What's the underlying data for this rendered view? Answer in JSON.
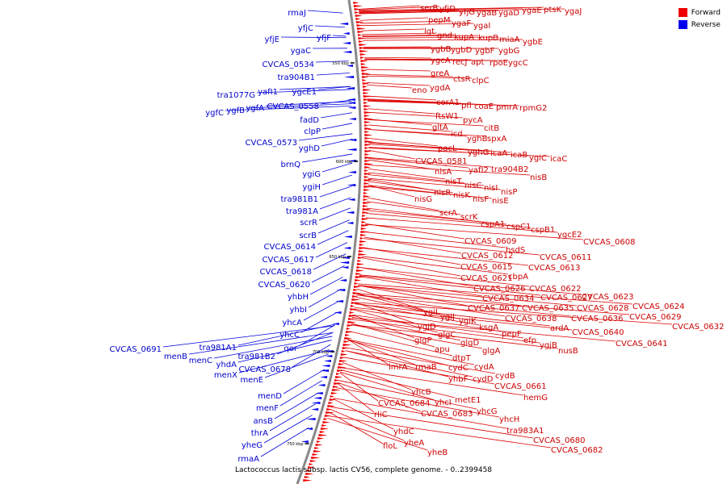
{
  "caption": "Lactococcus lactis subsp. lactis CV56, complete genome. - 0..2399458",
  "legend": [
    {
      "label": "Forward",
      "color": "#ee0000"
    },
    {
      "label": "Reverse",
      "color": "#0000ee"
    }
  ],
  "ticks": [
    "550 kbp",
    "600 kbp",
    "650 kbp",
    "700 kbp",
    "750 kbp"
  ],
  "forward_genes": [
    "serB",
    "yfjD",
    "yfjG",
    "ygaB",
    "ygaD",
    "ygaE",
    "ptsK",
    "ygaJ",
    "pepM",
    "ygaF",
    "ygaI",
    "lgt",
    "gnd",
    "kupA",
    "kupB",
    "miaA",
    "ygbE",
    "ygbB",
    "ygbD",
    "ygbF",
    "ygbG",
    "ygcA",
    "recJ",
    "apt",
    "rpoE",
    "ygcC",
    "greA",
    "ctsR",
    "clpC",
    "eno",
    "ygdA",
    "corA1",
    "pfl",
    "coaE",
    "pmrA",
    "rpmG2",
    "ftsW1",
    "pycA",
    "gltA",
    "citB",
    "icd",
    "yghB",
    "spxA",
    "pacL",
    "yghG",
    "icaA",
    "icaB",
    "ygiC",
    "icaC",
    "CVCAS_0581",
    "nisA",
    "yafI2",
    "tra904B2",
    "nisB",
    "nisT",
    "nisC",
    "nisI",
    "nisP",
    "nisR",
    "nisK",
    "nisF",
    "nisG",
    "nisE",
    "scrA",
    "scrK",
    "cspA1",
    "cspC1",
    "cspB1",
    "ygcE2",
    "CVCAS_0609",
    "hsdS",
    "CVCAS_0608",
    "CVCAS_0612",
    "CVCAS_0611",
    "CVCAS_0615",
    "CVCAS_0613",
    "CVCAS_0621",
    "cbpA",
    "CVCAS_0626",
    "CVCAS_0622",
    "CVCAS_0634",
    "CVCAS_0627",
    "CVCAS_0623",
    "CVCAS_0637",
    "CVCAS_0635",
    "CVCAS_0628",
    "CVCAS_0624",
    "ygiI",
    "ygiJ",
    "ygiK",
    "CVCAS_0638",
    "CVCAS_0636",
    "CVCAS_0629",
    "ygjD",
    "ksgA",
    "ardA",
    "CVCAS_0632",
    "glgC",
    "pepF",
    "CVCAS_0640",
    "glgP",
    "glgD",
    "efp",
    "ygjB",
    "CVCAS_0641",
    "apu",
    "glgA",
    "nusB",
    "dtpT",
    "lmrA",
    "rmaB",
    "cydC",
    "cydA",
    "yhbF",
    "cydD",
    "cydB",
    "CVCAS_0661",
    "yhcB",
    "hemG",
    "yhcI",
    "metE1",
    "CVCAS_0684",
    "yhcG",
    "rliC",
    "CVCAS_0683",
    "yhcH",
    "tra983A1",
    "yhdC",
    "CVCAS_0680",
    "yheA",
    "CVCAS_0682",
    "floL",
    "yheB"
  ],
  "reverse_genes": [
    "rmaJ",
    "yfjC",
    "yfjF",
    "yfjE",
    "ygaC",
    "CVCAS_0534",
    "tra904B1",
    "tra1077G",
    "yafI1",
    "ygcE1",
    "ygfC",
    "ygfB",
    "ygfA",
    "CVCAS_0558",
    "fadD",
    "clpP",
    "CVCAS_0573",
    "yghD",
    "brnQ",
    "ygiG",
    "ygiH",
    "tra981B1",
    "tra981A",
    "scrR",
    "scrB",
    "CVCAS_0614",
    "CVCAS_0617",
    "CVCAS_0618",
    "CVCAS_0620",
    "yhbH",
    "yhbI",
    "yhcA",
    "yhcC",
    "qor",
    "CVCAS_0691",
    "tra981A1",
    "menB",
    "menC",
    "tra981B2",
    "yhdA",
    "CVCAS_0678",
    "menX",
    "menE",
    "menD",
    "menF",
    "ansB",
    "thrA",
    "yheG",
    "rmaA"
  ]
}
